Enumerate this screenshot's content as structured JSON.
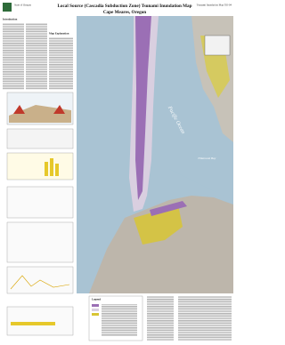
{
  "header": {
    "title": "Local Source (Cascadia Subduction Zone) Tsunami Inundation Map",
    "subtitle": "Cape Meares, Oregon",
    "agency": "State of Oregon",
    "series": "Tsunami Inundation Map Till-04"
  },
  "map": {
    "labels": [
      "Pacific Ocean",
      "Tillamook Bay"
    ]
  },
  "sidebar": {
    "headings": [
      "Introduction",
      "Map Explanation"
    ]
  },
  "legend": {
    "title": "Legend"
  }
}
